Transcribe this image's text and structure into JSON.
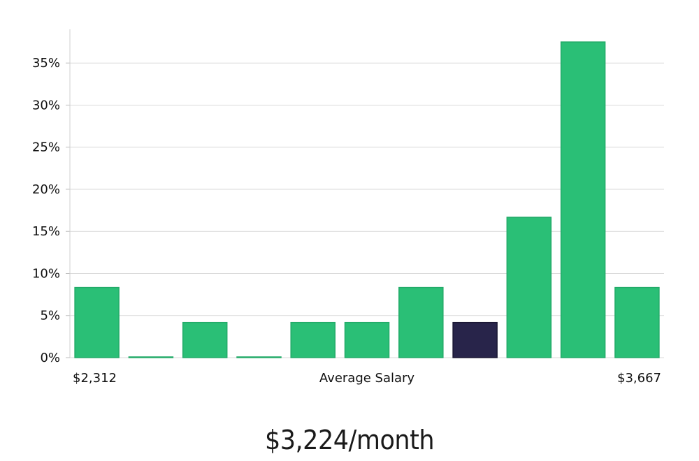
{
  "chart_data": {
    "type": "bar",
    "bins": 11,
    "values": [
      8.33,
      0,
      4.17,
      0,
      4.17,
      4.17,
      8.33,
      4.17,
      16.67,
      37.5,
      8.33
    ],
    "highlight_index": 7,
    "y_ticks": [
      0,
      5,
      10,
      15,
      20,
      25,
      30,
      35
    ],
    "y_tick_suffix": "%",
    "ylim": [
      0,
      39
    ],
    "x_min_label": "$2,312",
    "x_max_label": "$3,667",
    "xlabel": "Average Salary",
    "grid": true,
    "colors": {
      "bar": "#2abf76",
      "bar_edge": "#22aa68",
      "highlight": "#28244a",
      "highlight_edge": "#1a1733"
    }
  },
  "caption": "$3,224/month"
}
